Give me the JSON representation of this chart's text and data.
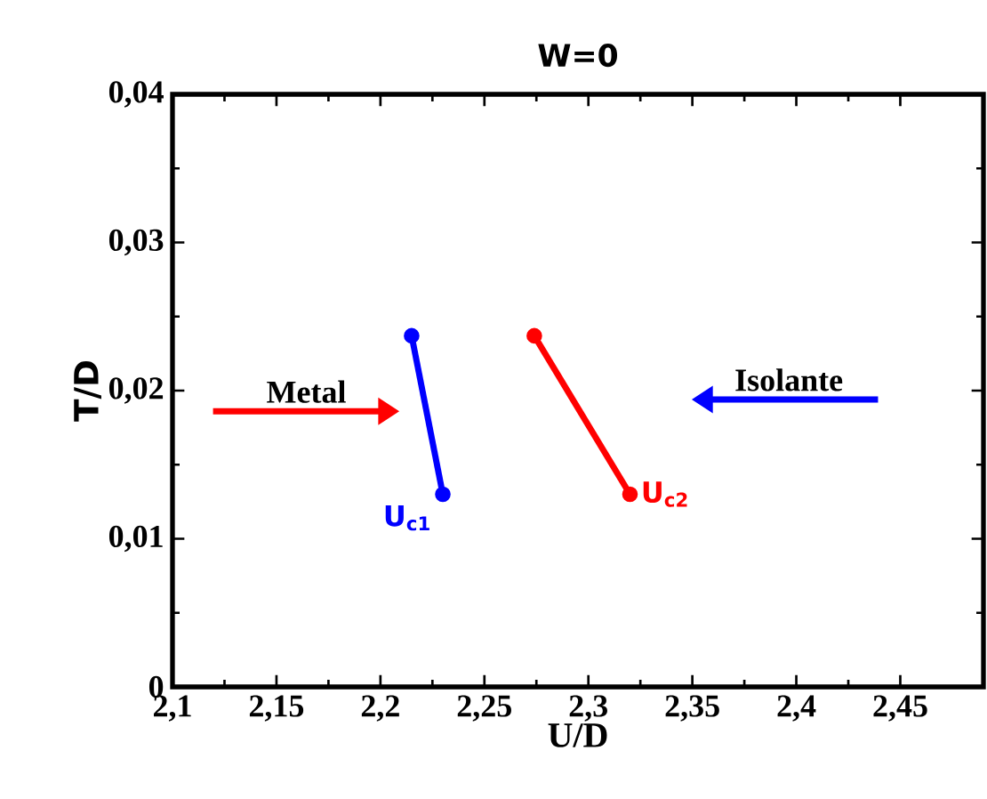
{
  "chart_data": {
    "type": "line",
    "title": "W=0",
    "xlabel": "U/D",
    "ylabel": "T/D",
    "marker": "circle",
    "line_style": "solid",
    "xlim": [
      2.1,
      2.49
    ],
    "ylim": [
      0,
      0.04
    ],
    "xticks": [
      {
        "value": 2.1,
        "label": "2,1"
      },
      {
        "value": 2.15,
        "label": "2,15"
      },
      {
        "value": 2.2,
        "label": "2,2"
      },
      {
        "value": 2.25,
        "label": "2,25"
      },
      {
        "value": 2.3,
        "label": "2,3"
      },
      {
        "value": 2.35,
        "label": "2,35"
      },
      {
        "value": 2.4,
        "label": "2,4"
      },
      {
        "value": 2.45,
        "label": "2,45"
      }
    ],
    "yticks": [
      0,
      {
        "value": 0.01,
        "label": "0,01"
      },
      {
        "value": 0.02,
        "label": "0,02"
      },
      {
        "value": 0.03,
        "label": "0,03"
      },
      {
        "value": 0.04,
        "label": "0,04"
      }
    ],
    "series": [
      {
        "name": "U$_{c1}$",
        "color": "#0000ff",
        "x": [
          2.215,
          2.23
        ],
        "values": [
          0.0237,
          0.013
        ]
      },
      {
        "name": "U$_{c2}$",
        "color": "#ff0000",
        "x": [
          2.274,
          2.32
        ],
        "values": [
          0.0237,
          0.013
        ]
      }
    ],
    "annotations": [
      "Metal",
      "Isolante"
    ]
  }
}
